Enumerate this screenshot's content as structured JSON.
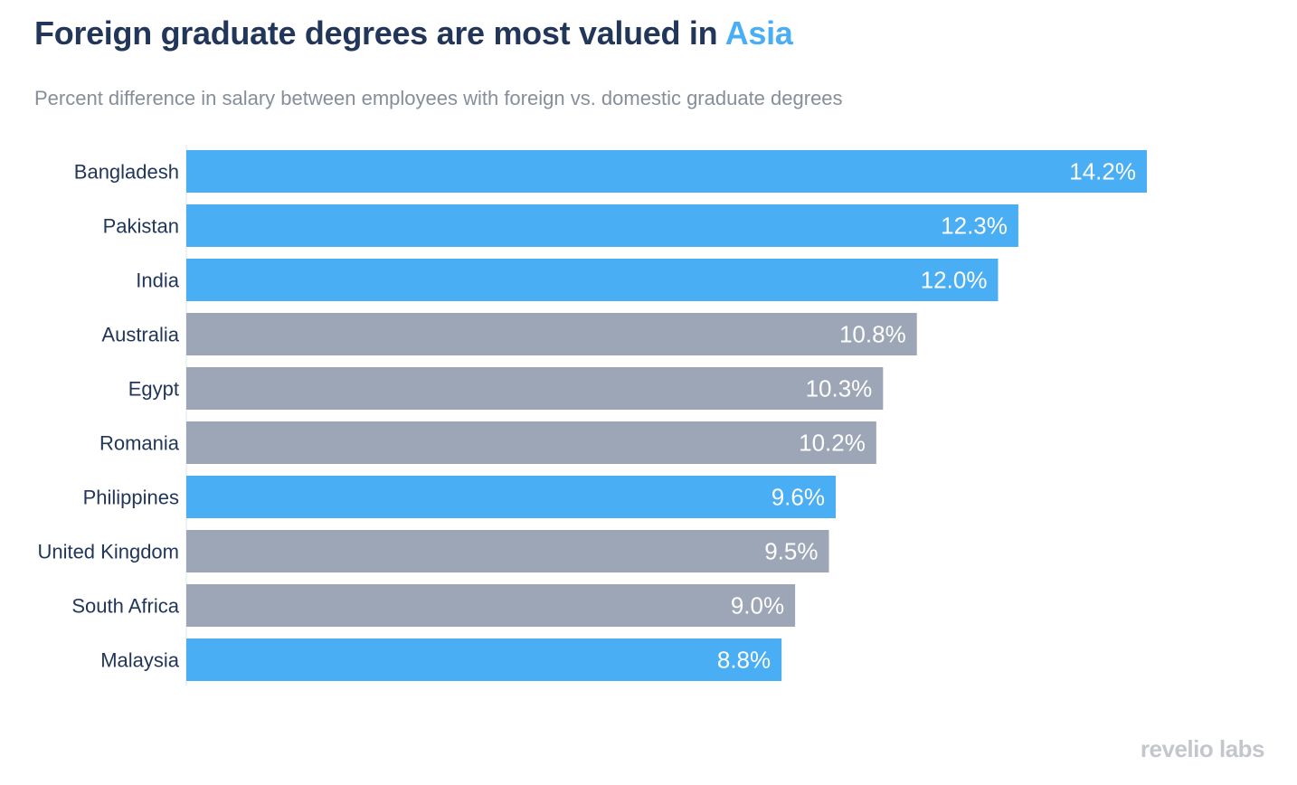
{
  "header": {
    "title_main": "Foreign graduate degrees are most valued in ",
    "title_accent": "Asia",
    "subtitle": "Percent difference in salary between employees with foreign vs. domestic graduate degrees"
  },
  "colors": {
    "title": "#22365a",
    "accent": "#49aef3",
    "asia_bar": "#49aef3",
    "other_bar": "#9ca6b6",
    "axis_label": "#22365a",
    "value_label": "#ffffff",
    "axis_line": "#e3e6ea"
  },
  "chart_data": {
    "type": "bar",
    "orientation": "horizontal",
    "categories": [
      "Bangladesh",
      "Pakistan",
      "India",
      "Australia",
      "Egypt",
      "Romania",
      "Philippines",
      "United Kingdom",
      "South Africa",
      "Malaysia"
    ],
    "values": [
      14.2,
      12.3,
      12.0,
      10.8,
      10.3,
      10.2,
      9.6,
      9.5,
      9.0,
      8.8
    ],
    "value_labels": [
      "14.2%",
      "12.3%",
      "12.0%",
      "10.8%",
      "10.3%",
      "10.2%",
      "9.6%",
      "9.5%",
      "9.0%",
      "8.8%"
    ],
    "groups": [
      "asia",
      "asia",
      "asia",
      "other",
      "other",
      "other",
      "asia",
      "other",
      "other",
      "asia"
    ],
    "xlim": [
      0,
      14.2
    ],
    "grid": false,
    "legend": "none"
  },
  "branding": {
    "logo_text": "revelio labs"
  }
}
